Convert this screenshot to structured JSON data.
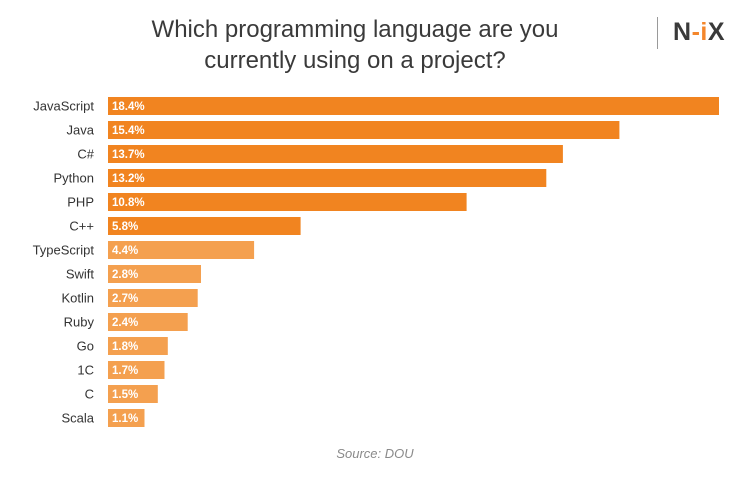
{
  "title_line1": "Which programming language are you",
  "title_line2": "currently using on a project?",
  "logo": {
    "text_main": "N",
    "text_accent": "-i",
    "text_end": "X"
  },
  "source": "Source: DOU",
  "colors": {
    "bar_dark": "#f18420",
    "bar_light": "#f4a04f",
    "label_text": "#ffffff"
  },
  "chart_data": {
    "type": "bar",
    "orientation": "horizontal",
    "categories": [
      "JavaScript",
      "Java",
      "C#",
      "Python",
      "PHP",
      "C++",
      "TypeScript",
      "Swift",
      "Kotlin",
      "Ruby",
      "Go",
      "1C",
      "C",
      "Scala"
    ],
    "values": [
      18.4,
      15.4,
      13.7,
      13.2,
      10.8,
      5.8,
      4.4,
      2.8,
      2.7,
      2.4,
      1.8,
      1.7,
      1.5,
      1.1
    ],
    "data_labels": [
      "18.4%",
      "15.4%",
      "13.7%",
      "13.2%",
      "10.8%",
      "5.8%",
      "4.4%",
      "2.8%",
      "2.7%",
      "2.4%",
      "1.8%",
      "1.7%",
      "1.5%",
      "1.1%"
    ],
    "xlim": [
      0,
      18.4
    ],
    "grid": false,
    "legend": "none"
  }
}
